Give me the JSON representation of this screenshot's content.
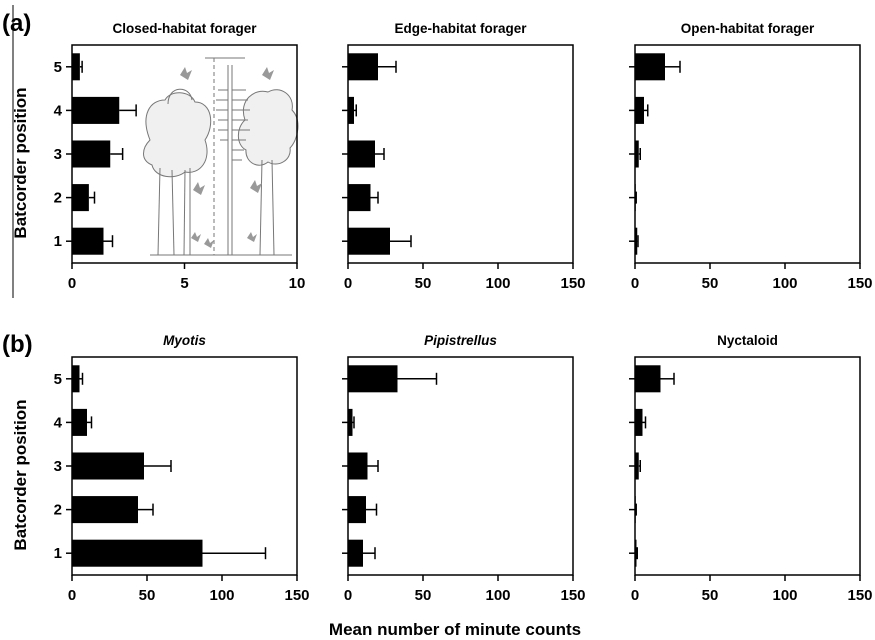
{
  "figure": {
    "panel_letters": [
      "(a)",
      "(b)"
    ],
    "y_axis_title": "Batcorder position",
    "x_axis_title": "Mean number of minute counts",
    "inset_illustration": "forest-cross-section-with-batcorder-mast-and-bats"
  },
  "chart_data": [
    {
      "type": "bar",
      "orientation": "horizontal",
      "title": "Closed-habitat forager",
      "title_italic": false,
      "categories": [
        "1",
        "2",
        "3",
        "4",
        "5"
      ],
      "values": [
        1.4,
        0.75,
        1.7,
        2.1,
        0.35
      ],
      "errors": [
        0.4,
        0.25,
        0.55,
        0.75,
        0.1
      ],
      "xlim": [
        0,
        10
      ],
      "xticks": [
        "0",
        "5",
        "10"
      ],
      "xlabel": "",
      "ylabel": "Batcorder position",
      "grid": false
    },
    {
      "type": "bar",
      "orientation": "horizontal",
      "title": "Edge-habitat forager",
      "title_italic": false,
      "categories": [
        "1",
        "2",
        "3",
        "4",
        "5"
      ],
      "values": [
        28,
        15,
        18,
        4,
        20
      ],
      "errors": [
        14,
        5,
        6,
        1.5,
        12
      ],
      "xlim": [
        0,
        150
      ],
      "xticks": [
        "0",
        "50",
        "100",
        "150"
      ],
      "xlabel": "",
      "ylabel": "",
      "grid": false
    },
    {
      "type": "bar",
      "orientation": "horizontal",
      "title": "Open-habitat forager",
      "title_italic": false,
      "categories": [
        "1",
        "2",
        "3",
        "4",
        "5"
      ],
      "values": [
        1.5,
        0.5,
        2.5,
        6,
        20
      ],
      "errors": [
        0.5,
        0.3,
        1,
        2.5,
        10
      ],
      "xlim": [
        0,
        150
      ],
      "xticks": [
        "0",
        "50",
        "100",
        "150"
      ],
      "xlabel": "",
      "ylabel": "",
      "grid": false
    },
    {
      "type": "bar",
      "orientation": "horizontal",
      "title": "Myotis",
      "title_italic": true,
      "categories": [
        "1",
        "2",
        "3",
        "4",
        "5"
      ],
      "values": [
        87,
        44,
        48,
        10,
        5
      ],
      "errors": [
        42,
        10,
        18,
        3,
        2
      ],
      "xlim": [
        0,
        150
      ],
      "xticks": [
        "0",
        "50",
        "100",
        "150"
      ],
      "xlabel": "",
      "ylabel": "Batcorder position",
      "grid": false
    },
    {
      "type": "bar",
      "orientation": "horizontal",
      "title": "Pipistrellus",
      "title_italic": true,
      "categories": [
        "1",
        "2",
        "3",
        "4",
        "5"
      ],
      "values": [
        10,
        12,
        13,
        3,
        33
      ],
      "errors": [
        8,
        7,
        7,
        1,
        26
      ],
      "xlim": [
        0,
        150
      ],
      "xticks": [
        "0",
        "50",
        "100",
        "150"
      ],
      "xlabel": "",
      "ylabel": "",
      "grid": false
    },
    {
      "type": "bar",
      "orientation": "horizontal",
      "title": "Nyctaloid",
      "title_italic": false,
      "categories": [
        "1",
        "2",
        "3",
        "4",
        "5"
      ],
      "values": [
        1,
        0.5,
        2.5,
        5,
        17
      ],
      "errors": [
        0.5,
        0.3,
        1,
        2,
        9
      ],
      "xlim": [
        0,
        150
      ],
      "xticks": [
        "0",
        "50",
        "100",
        "150"
      ],
      "xlabel": "",
      "ylabel": "",
      "grid": false
    }
  ]
}
